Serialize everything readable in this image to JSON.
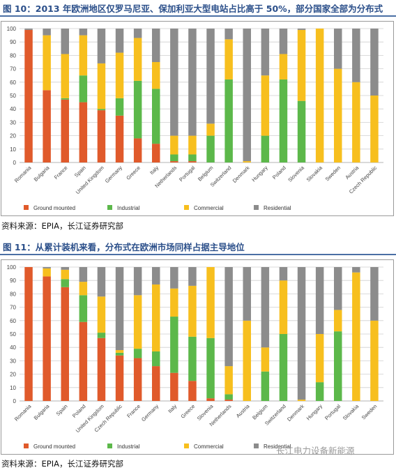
{
  "figure10": {
    "title": "图 10：2013 年欧洲地区仅罗马尼亚、保加利亚大型电站占比高于 50%，部分国家全部为分布式",
    "source": "资料来源：EPIA，长江证券研究部"
  },
  "figure11": {
    "title": "图 11：从累计装机来看，分布式在欧洲市场同样占据主导地位",
    "source": "资料来源：EPIA，长江证券研究部"
  },
  "watermark": "长江电力设备新能源",
  "colors": {
    "ground_mounted": "#e05a2b",
    "industrial": "#5cb84a",
    "commercial": "#f7bf1e",
    "residential": "#8c8c8c",
    "grid": "#cfcfcf"
  },
  "chart_data": [
    {
      "type": "bar",
      "stacked": true,
      "categories": [
        "Romania",
        "Bulgaria",
        "France",
        "Spain",
        "United Kingdom",
        "Germany",
        "Greece",
        "Italy",
        "Netherlands",
        "Portugal",
        "Belgium",
        "Switzerland",
        "Denmark",
        "Hungary",
        "Poland",
        "Slovenia",
        "Slovakia",
        "Sweden",
        "Austria",
        "Czech Republic"
      ],
      "ylim": [
        0,
        100
      ],
      "yticks": [
        0,
        10,
        20,
        30,
        40,
        50,
        60,
        70,
        80,
        90,
        100
      ],
      "legend_position": "bottom",
      "series": [
        {
          "name": "Ground mounted",
          "values": [
            99,
            54,
            47,
            45,
            39,
            35,
            18,
            14,
            1,
            1,
            0,
            0,
            0,
            0,
            0,
            0,
            0,
            0,
            0,
            0
          ]
        },
        {
          "name": "Industrial",
          "values": [
            0,
            0,
            1,
            20,
            1,
            13,
            43,
            41,
            5,
            5,
            20,
            62,
            0,
            20,
            62,
            46,
            0,
            0,
            0,
            0
          ]
        },
        {
          "name": "Commercial",
          "values": [
            0,
            41,
            33,
            30,
            34,
            34,
            32,
            20,
            14,
            14,
            9,
            30,
            1,
            45,
            19,
            53,
            100,
            70,
            60,
            50
          ]
        },
        {
          "name": "Residential",
          "values": [
            1,
            5,
            19,
            5,
            26,
            18,
            7,
            25,
            80,
            80,
            71,
            8,
            99,
            35,
            19,
            1,
            0,
            30,
            40,
            50
          ]
        }
      ]
    },
    {
      "type": "bar",
      "stacked": true,
      "categories": [
        "Romania",
        "Bulgaria",
        "Spain",
        "Poland",
        "United Kingdom",
        "Czech Republic",
        "France",
        "Germany",
        "Italy",
        "Greece",
        "Slovenia",
        "Netherlands",
        "Austria",
        "Belgium",
        "Switzerland",
        "Denmark",
        "Hungary",
        "Portugal",
        "Slovakia",
        "Sweden"
      ],
      "ylim": [
        0,
        100
      ],
      "yticks": [
        0,
        10,
        20,
        30,
        40,
        50,
        60,
        70,
        80,
        90,
        100
      ],
      "legend_position": "bottom",
      "series": [
        {
          "name": "Ground mounted",
          "values": [
            100,
            93,
            85,
            59,
            47,
            34,
            32,
            26,
            21,
            15,
            2,
            1,
            0,
            0,
            0,
            0,
            0,
            0,
            0,
            0
          ]
        },
        {
          "name": "Industrial",
          "values": [
            0,
            0,
            6,
            20,
            4,
            2,
            7,
            11,
            42,
            33,
            45,
            4,
            0,
            22,
            50,
            0,
            14,
            52,
            0,
            0
          ]
        },
        {
          "name": "Commercial",
          "values": [
            0,
            6,
            7,
            10,
            27,
            2,
            40,
            50,
            21,
            38,
            53,
            21,
            60,
            18,
            40,
            1,
            36,
            16,
            96,
            60
          ]
        },
        {
          "name": "Residential",
          "values": [
            0,
            1,
            2,
            11,
            22,
            62,
            21,
            13,
            16,
            14,
            0,
            74,
            40,
            60,
            10,
            99,
            50,
            32,
            4,
            40
          ]
        }
      ]
    }
  ]
}
